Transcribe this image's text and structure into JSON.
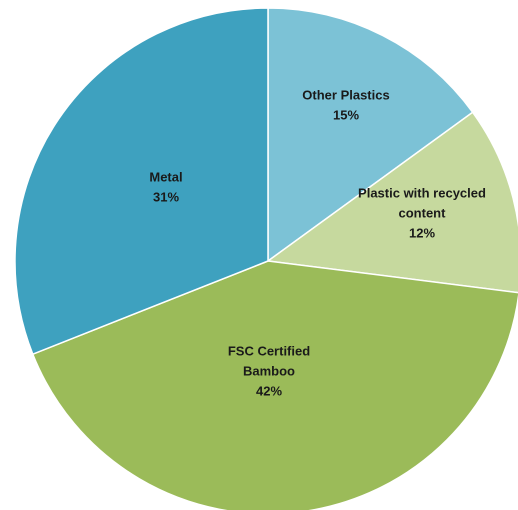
{
  "chart_data": {
    "type": "pie",
    "title": "",
    "start_angle_deg": 0,
    "direction": "clockwise",
    "legend": "none",
    "slices": [
      {
        "label_lines": [
          "Other Plastics"
        ],
        "value_label": "15%",
        "value": 15,
        "color": "#7cc2d6"
      },
      {
        "label_lines": [
          "Plastic with recycled",
          "content"
        ],
        "value_label": "12%",
        "value": 12,
        "color": "#c6d99e"
      },
      {
        "label_lines": [
          "FSC Certified",
          "Bamboo"
        ],
        "value_label": "42%",
        "value": 42,
        "color": "#9bbb59"
      },
      {
        "label_lines": [
          "Metal"
        ],
        "value_label": "31%",
        "value": 31,
        "color": "#3ea1bf"
      }
    ]
  }
}
